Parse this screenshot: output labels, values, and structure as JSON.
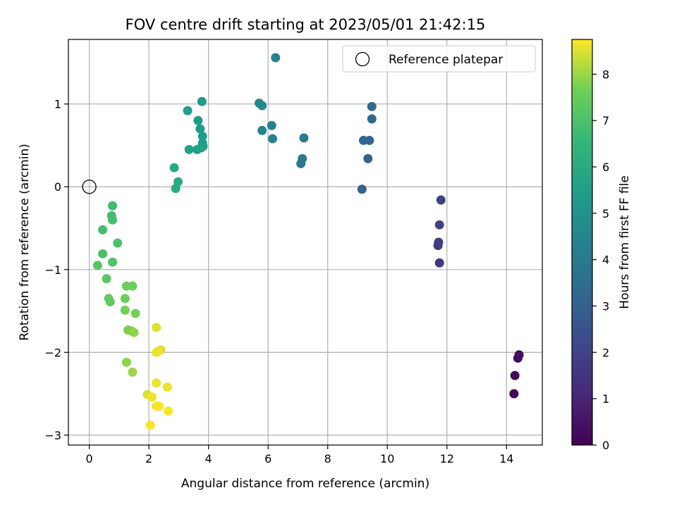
{
  "chart_data": {
    "type": "scatter",
    "title": "FOV centre drift starting at 2023/05/01 21:42:15",
    "xlabel": "Angular distance from reference (arcmin)",
    "ylabel": "Rotation from reference (arcmin)",
    "xlim": [
      -0.7,
      15.2
    ],
    "ylim": [
      -3.12,
      1.78
    ],
    "xticks": [
      0,
      2,
      4,
      6,
      8,
      10,
      12,
      14
    ],
    "yticks": [
      -3,
      -2,
      -1,
      0,
      1
    ],
    "grid": true,
    "legend": {
      "placement": "top-right",
      "entries": [
        "Reference platepar"
      ]
    },
    "reference": {
      "x": 0,
      "y": 0,
      "marker": "open-circle"
    },
    "colorbar": {
      "label": "Hours from first FF file",
      "range": [
        0,
        8.75
      ],
      "ticks": [
        0,
        1,
        2,
        3,
        4,
        5,
        6,
        7,
        8
      ],
      "colormap": "viridis"
    },
    "points": [
      {
        "x": 14.25,
        "y": -2.5,
        "t": 0.1
      },
      {
        "x": 14.28,
        "y": -2.28,
        "t": 0.2
      },
      {
        "x": 14.38,
        "y": -2.07,
        "t": 0.3
      },
      {
        "x": 14.42,
        "y": -2.03,
        "t": 0.4
      },
      {
        "x": 11.75,
        "y": -0.92,
        "t": 1.6
      },
      {
        "x": 11.7,
        "y": -0.71,
        "t": 1.7
      },
      {
        "x": 11.72,
        "y": -0.67,
        "t": 1.8
      },
      {
        "x": 11.75,
        "y": -0.46,
        "t": 1.9
      },
      {
        "x": 11.8,
        "y": -0.16,
        "t": 1.9
      },
      {
        "x": 9.15,
        "y": -0.03,
        "t": 3.0
      },
      {
        "x": 9.35,
        "y": 0.34,
        "t": 3.1
      },
      {
        "x": 9.2,
        "y": 0.56,
        "t": 3.2
      },
      {
        "x": 9.4,
        "y": 0.56,
        "t": 3.2
      },
      {
        "x": 9.48,
        "y": 0.82,
        "t": 3.3
      },
      {
        "x": 9.48,
        "y": 0.97,
        "t": 3.3
      },
      {
        "x": 7.1,
        "y": 0.28,
        "t": 4.0
      },
      {
        "x": 7.15,
        "y": 0.34,
        "t": 4.0
      },
      {
        "x": 7.2,
        "y": 0.59,
        "t": 4.1
      },
      {
        "x": 6.25,
        "y": 1.56,
        "t": 4.3
      },
      {
        "x": 6.12,
        "y": 0.74,
        "t": 4.4
      },
      {
        "x": 6.15,
        "y": 0.58,
        "t": 4.4
      },
      {
        "x": 5.8,
        "y": 0.68,
        "t": 4.5
      },
      {
        "x": 5.7,
        "y": 1.01,
        "t": 4.6
      },
      {
        "x": 5.8,
        "y": 0.98,
        "t": 4.6
      },
      {
        "x": 3.78,
        "y": 1.03,
        "t": 5.3
      },
      {
        "x": 3.65,
        "y": 0.8,
        "t": 5.4
      },
      {
        "x": 3.72,
        "y": 0.7,
        "t": 5.4
      },
      {
        "x": 3.8,
        "y": 0.61,
        "t": 5.5
      },
      {
        "x": 3.8,
        "y": 0.53,
        "t": 5.5
      },
      {
        "x": 3.75,
        "y": 0.47,
        "t": 5.5
      },
      {
        "x": 3.82,
        "y": 0.49,
        "t": 5.5
      },
      {
        "x": 3.62,
        "y": 0.45,
        "t": 5.6
      },
      {
        "x": 3.35,
        "y": 0.45,
        "t": 5.6
      },
      {
        "x": 3.3,
        "y": 0.92,
        "t": 5.5
      },
      {
        "x": 2.85,
        "y": 0.23,
        "t": 5.9
      },
      {
        "x": 2.98,
        "y": 0.06,
        "t": 6.0
      },
      {
        "x": 2.9,
        "y": -0.02,
        "t": 6.0
      },
      {
        "x": 0.78,
        "y": -0.23,
        "t": 6.8
      },
      {
        "x": 0.75,
        "y": -0.35,
        "t": 6.8
      },
      {
        "x": 0.78,
        "y": -0.4,
        "t": 6.9
      },
      {
        "x": 0.45,
        "y": -0.52,
        "t": 6.9
      },
      {
        "x": 0.95,
        "y": -0.68,
        "t": 7.0
      },
      {
        "x": 0.45,
        "y": -0.81,
        "t": 7.0
      },
      {
        "x": 0.78,
        "y": -0.91,
        "t": 7.1
      },
      {
        "x": 0.28,
        "y": -0.95,
        "t": 7.2
      },
      {
        "x": 0.58,
        "y": -1.11,
        "t": 7.3
      },
      {
        "x": 1.25,
        "y": -1.2,
        "t": 7.6
      },
      {
        "x": 1.45,
        "y": -1.2,
        "t": 7.6
      },
      {
        "x": 1.2,
        "y": -1.35,
        "t": 7.6
      },
      {
        "x": 0.65,
        "y": -1.35,
        "t": 7.4
      },
      {
        "x": 0.7,
        "y": -1.39,
        "t": 7.4
      },
      {
        "x": 1.2,
        "y": -1.49,
        "t": 7.7
      },
      {
        "x": 1.55,
        "y": -1.53,
        "t": 7.7
      },
      {
        "x": 1.3,
        "y": -1.73,
        "t": 7.8
      },
      {
        "x": 1.4,
        "y": -1.74,
        "t": 7.8
      },
      {
        "x": 1.5,
        "y": -1.76,
        "t": 7.9
      },
      {
        "x": 1.25,
        "y": -2.12,
        "t": 7.9
      },
      {
        "x": 1.45,
        "y": -2.24,
        "t": 8.0
      },
      {
        "x": 2.25,
        "y": -1.7,
        "t": 8.5
      },
      {
        "x": 2.4,
        "y": -1.97,
        "t": 8.5
      },
      {
        "x": 2.25,
        "y": -2.0,
        "t": 8.6
      },
      {
        "x": 2.3,
        "y": -1.99,
        "t": 8.6
      },
      {
        "x": 2.25,
        "y": -2.37,
        "t": 8.6
      },
      {
        "x": 2.62,
        "y": -2.42,
        "t": 8.6
      },
      {
        "x": 1.95,
        "y": -2.51,
        "t": 8.5
      },
      {
        "x": 2.1,
        "y": -2.54,
        "t": 8.6
      },
      {
        "x": 2.25,
        "y": -2.65,
        "t": 8.7
      },
      {
        "x": 2.35,
        "y": -2.65,
        "t": 8.7
      },
      {
        "x": 2.65,
        "y": -2.71,
        "t": 8.7
      },
      {
        "x": 2.05,
        "y": -2.88,
        "t": 8.7
      }
    ]
  }
}
